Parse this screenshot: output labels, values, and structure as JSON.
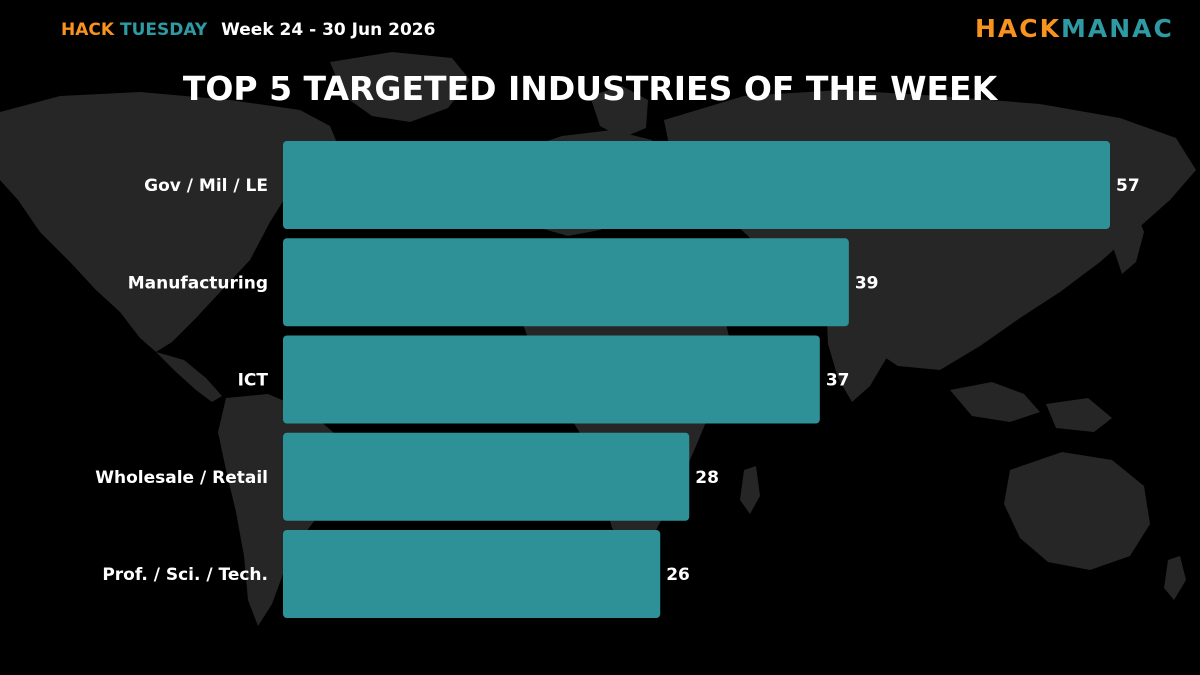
{
  "header": {
    "brand_hack": "HACK",
    "brand_tuesday": "TUESDAY",
    "week": "Week 24 - 30 Jun 2026",
    "logo_hack": "HACK",
    "logo_manac": "MANAC"
  },
  "colors": {
    "background": "#000000",
    "map": "#262626",
    "bar": "#2e9198",
    "accent_orange": "#f7931e",
    "accent_teal": "#2e9aa3",
    "text": "#ffffff"
  },
  "chart_data": {
    "type": "bar",
    "orientation": "horizontal",
    "title": "TOP 5 TARGETED INDUSTRIES OF THE WEEK",
    "categories": [
      "Gov / Mil / LE",
      "Manufacturing",
      "ICT",
      "Wholesale / Retail",
      "Prof. / Sci. / Tech."
    ],
    "values": [
      57,
      39,
      37,
      28,
      26
    ],
    "xlim": [
      0,
      57
    ],
    "grid": false,
    "legend": "none"
  }
}
